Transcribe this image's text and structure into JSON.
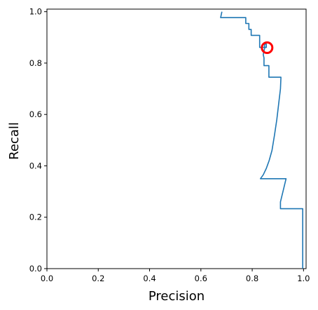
{
  "chart_data": {
    "type": "line",
    "title": "",
    "xlabel": "Precision",
    "ylabel": "Recall",
    "xlim": [
      0.0,
      1.01
    ],
    "ylim": [
      0.0,
      1.01
    ],
    "grid": false,
    "x_ticks": [
      "0.0",
      "0.2",
      "0.4",
      "0.6",
      "0.8",
      "1.0"
    ],
    "y_ticks": [
      "0.0",
      "0.2",
      "0.4",
      "0.6",
      "0.8",
      "1.0"
    ],
    "x_tick_values": [
      0.0,
      0.2,
      0.4,
      0.6,
      0.8,
      1.0
    ],
    "y_tick_values": [
      0.0,
      0.2,
      0.4,
      0.6,
      0.8,
      1.0
    ],
    "line_color": "#1f77b4",
    "marker_color": "#ff0000",
    "series": [
      {
        "x": [
          0.682,
          0.677,
          0.775,
          0.775,
          0.787,
          0.787,
          0.796,
          0.796,
          0.829,
          0.829,
          0.855,
          0.855,
          0.848,
          0.848,
          0.849,
          0.846,
          0.843,
          0.843,
          0.846,
          0.846,
          0.865,
          0.865,
          0.873,
          0.873,
          0.912,
          0.91,
          0.903,
          0.896,
          0.887,
          0.877,
          0.866,
          0.855,
          0.843,
          0.832,
          0.832,
          0.932,
          0.92,
          0.91,
          0.91,
          0.997,
          0.997
        ],
        "y": [
          1.0,
          0.977,
          0.977,
          0.954,
          0.954,
          0.931,
          0.931,
          0.908,
          0.908,
          0.861,
          0.861,
          0.874,
          0.874,
          0.86,
          0.86,
          0.847,
          0.833,
          0.833,
          0.82,
          0.79,
          0.79,
          0.745,
          0.745,
          0.745,
          0.745,
          0.7,
          0.64,
          0.58,
          0.52,
          0.46,
          0.42,
          0.39,
          0.365,
          0.35,
          0.35,
          0.35,
          0.3,
          0.26,
          0.233,
          0.233,
          0.0
        ]
      }
    ],
    "highlight_point": {
      "x": 0.858,
      "y": 0.86
    }
  }
}
